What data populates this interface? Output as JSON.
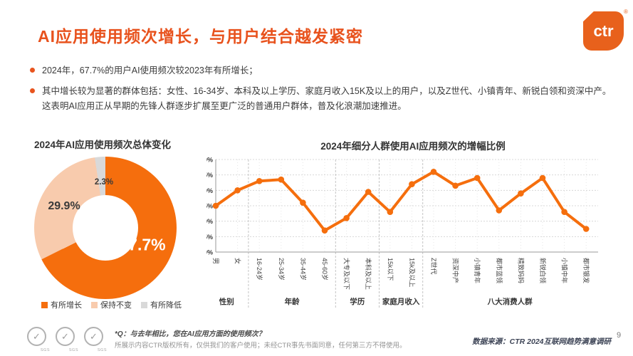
{
  "header": {
    "title": "AI应用使用频次增长，与用户结合越发紧密",
    "logo_text": "ctr",
    "logo_reg": "®"
  },
  "bullets": [
    "2024年，67.7%的用户AI使用频次较2023年有所增长；",
    "其中增长较为显著的群体包括：女性、16-34岁、本科及以上学历、家庭月收入15K及以上的用户，以及Z世代、小镇青年、新锐白领和资深中产。这表明AI应用正从早期的先锋人群逐步扩展至更广泛的普通用户群体，普及化浪潮加速推进。"
  ],
  "colors": {
    "title_orange": "#E8521D",
    "chart_orange": "#F56E0D",
    "peach": "#F8CBAD",
    "light_gray": "#D9D9D9"
  },
  "chart_data": [
    {
      "type": "pie",
      "title": "2024年AI应用使用频次总体变化",
      "donut": true,
      "start_angle": "top",
      "direction": "clockwise",
      "slices": [
        {
          "label": "有所增长",
          "value": 67.7,
          "display": "67.7%",
          "color": "#F56E0D"
        },
        {
          "label": "保持不变",
          "value": 29.9,
          "display": "29.9%",
          "color": "#F8CBAD"
        },
        {
          "label": "有所降低",
          "value": 2.3,
          "display": "2.3%",
          "color": "#D9D9D9"
        }
      ]
    },
    {
      "type": "line",
      "title": "2024年细分人群使用AI应用频次的增幅比例",
      "categories": [
        "男",
        "女",
        "16-24岁",
        "25-34岁",
        "35-44岁",
        "45-60岁",
        "大专及以下",
        "本科及以上",
        "15k以下",
        "15k及以上",
        "Z世代",
        "资深中产",
        "小镇青年",
        "都市蓝领",
        "精致妈妈",
        "新锐白领",
        "小镇中年",
        "都市银发"
      ],
      "values": [
        65,
        70,
        73,
        73.5,
        66,
        57,
        61,
        69.5,
        63,
        72,
        76,
        71.5,
        74,
        63.5,
        69,
        74,
        63,
        57.5
      ],
      "groups": [
        {
          "label": "性别",
          "span": [
            0,
            1
          ]
        },
        {
          "label": "年龄",
          "span": [
            2,
            5
          ]
        },
        {
          "label": "学历",
          "span": [
            6,
            7
          ]
        },
        {
          "label": "家庭月收入",
          "span": [
            8,
            9
          ]
        },
        {
          "label": "八大消费人群",
          "span": [
            10,
            17
          ]
        }
      ],
      "ylim": [
        50,
        80
      ],
      "ytick_step": 5,
      "ytick_suffix": "%",
      "line_color": "#F56E0D",
      "grid": true,
      "legend_position": "none"
    }
  ],
  "footer": {
    "q_note": "*Q：与去年相比，您在AI应用方面的使用频次？",
    "copyright": "所展示内容CTR版权所有，仅供我们的客户使用；未经CTR事先书面同意，任何第三方不得使用。",
    "source": "数据来源：CTR 2024互联网趋势满意调研",
    "page_number": "9",
    "cert_label": "SGS",
    "cert_check": "✓"
  }
}
